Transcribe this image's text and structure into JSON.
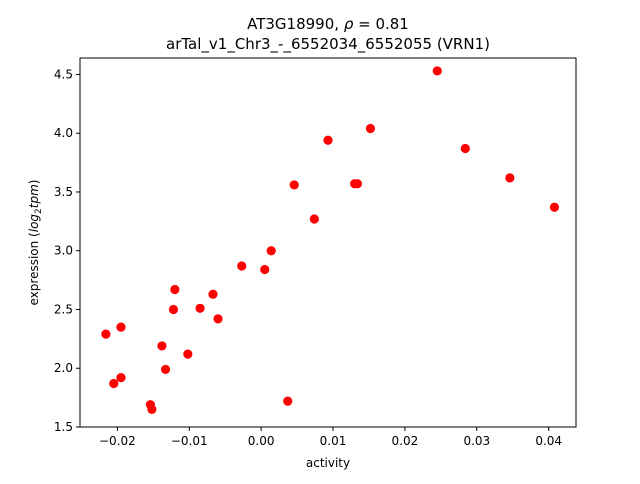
{
  "chart_data": {
    "type": "scatter",
    "title_line1_prefix": "AT3G18990, ",
    "title_line1_rho": "ρ",
    "title_line1_suffix": " = 0.81",
    "title_line2": "arTal_v1_Chr3_-_6552034_6552055 (VRN1)",
    "xlabel": "activity",
    "ylabel_prefix": "expression (",
    "ylabel_log": "log",
    "ylabel_sub": "2",
    "ylabel_tpm": "tpm",
    "ylabel_suffix": ")",
    "xlim": [
      -0.0252,
      0.0438
    ],
    "ylim": [
      1.5,
      4.64
    ],
    "xticks": [
      {
        "value": -0.02,
        "label": "−0.02"
      },
      {
        "value": -0.01,
        "label": "−0.01"
      },
      {
        "value": 0.0,
        "label": "0.00"
      },
      {
        "value": 0.01,
        "label": "0.01"
      },
      {
        "value": 0.02,
        "label": "0.02"
      },
      {
        "value": 0.03,
        "label": "0.03"
      },
      {
        "value": 0.04,
        "label": "0.04"
      }
    ],
    "yticks": [
      {
        "value": 1.5,
        "label": "1.5"
      },
      {
        "value": 2.0,
        "label": "2.0"
      },
      {
        "value": 2.5,
        "label": "2.5"
      },
      {
        "value": 3.0,
        "label": "3.0"
      },
      {
        "value": 3.5,
        "label": "3.5"
      },
      {
        "value": 4.0,
        "label": "4.0"
      },
      {
        "value": 4.5,
        "label": "4.5"
      }
    ],
    "marker_color": "#ff0000",
    "grid": false,
    "points": [
      {
        "x": -0.0216,
        "y": 2.29
      },
      {
        "x": -0.0205,
        "y": 1.87
      },
      {
        "x": -0.0195,
        "y": 2.35
      },
      {
        "x": -0.0195,
        "y": 1.92
      },
      {
        "x": -0.0154,
        "y": 1.69
      },
      {
        "x": -0.0152,
        "y": 1.65
      },
      {
        "x": -0.0138,
        "y": 2.19
      },
      {
        "x": -0.0133,
        "y": 1.99
      },
      {
        "x": -0.0122,
        "y": 2.5
      },
      {
        "x": -0.012,
        "y": 2.67
      },
      {
        "x": -0.0102,
        "y": 2.12
      },
      {
        "x": -0.0085,
        "y": 2.51
      },
      {
        "x": -0.0067,
        "y": 2.63
      },
      {
        "x": -0.006,
        "y": 2.42
      },
      {
        "x": -0.0027,
        "y": 2.87
      },
      {
        "x": 0.0005,
        "y": 2.84
      },
      {
        "x": 0.0014,
        "y": 3.0
      },
      {
        "x": 0.0037,
        "y": 1.72
      },
      {
        "x": 0.0046,
        "y": 3.56
      },
      {
        "x": 0.0074,
        "y": 3.27
      },
      {
        "x": 0.0093,
        "y": 3.94
      },
      {
        "x": 0.013,
        "y": 3.57
      },
      {
        "x": 0.0134,
        "y": 3.57
      },
      {
        "x": 0.0152,
        "y": 4.04
      },
      {
        "x": 0.0245,
        "y": 4.53
      },
      {
        "x": 0.0284,
        "y": 3.87
      },
      {
        "x": 0.0346,
        "y": 3.62
      },
      {
        "x": 0.0408,
        "y": 3.37
      }
    ]
  }
}
